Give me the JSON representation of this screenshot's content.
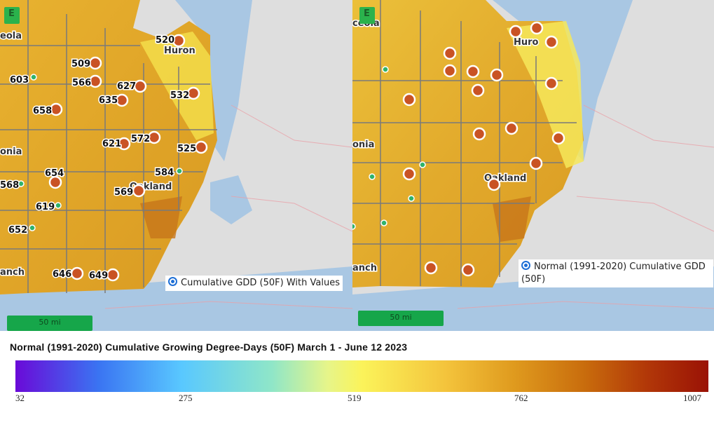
{
  "left_panel": {
    "layer_label": "Cumulative GDD (50F) With Values",
    "scale_label": "50 mi",
    "zoom_badge": "E",
    "place_labels": [
      "eola",
      "Huron",
      "onia",
      "Oakland",
      "anch"
    ],
    "station_values": [
      {
        "label": "520"
      },
      {
        "label": "509"
      },
      {
        "label": "603"
      },
      {
        "label": "566"
      },
      {
        "label": "627"
      },
      {
        "label": "635"
      },
      {
        "label": "532"
      },
      {
        "label": "658"
      },
      {
        "label": "572"
      },
      {
        "label": "621"
      },
      {
        "label": "525"
      },
      {
        "label": "654"
      },
      {
        "label": "584"
      },
      {
        "label": "568"
      },
      {
        "label": "569"
      },
      {
        "label": "619"
      },
      {
        "label": "652"
      },
      {
        "label": "646"
      },
      {
        "label": "649"
      }
    ]
  },
  "right_panel": {
    "layer_label": "Normal (1991-2020) Cumulative GDD (50F)",
    "scale_label": "50 mi",
    "zoom_badge": "E",
    "place_labels": [
      "ceola",
      "Huro",
      "onia",
      "Oakland",
      "anch"
    ]
  },
  "legend": {
    "title": "Normal (1991-2020) Cumulative Growing Degree-Days (50F) March 1 - June 12 2023",
    "ticks": [
      "32",
      "275",
      "519",
      "762",
      "1007"
    ],
    "colors": [
      "#6a0ad8",
      "#3a74f2",
      "#59c8ff",
      "#8fe6c8",
      "#fbf35a",
      "#df9a1e",
      "#b23808",
      "#9a1205"
    ]
  }
}
